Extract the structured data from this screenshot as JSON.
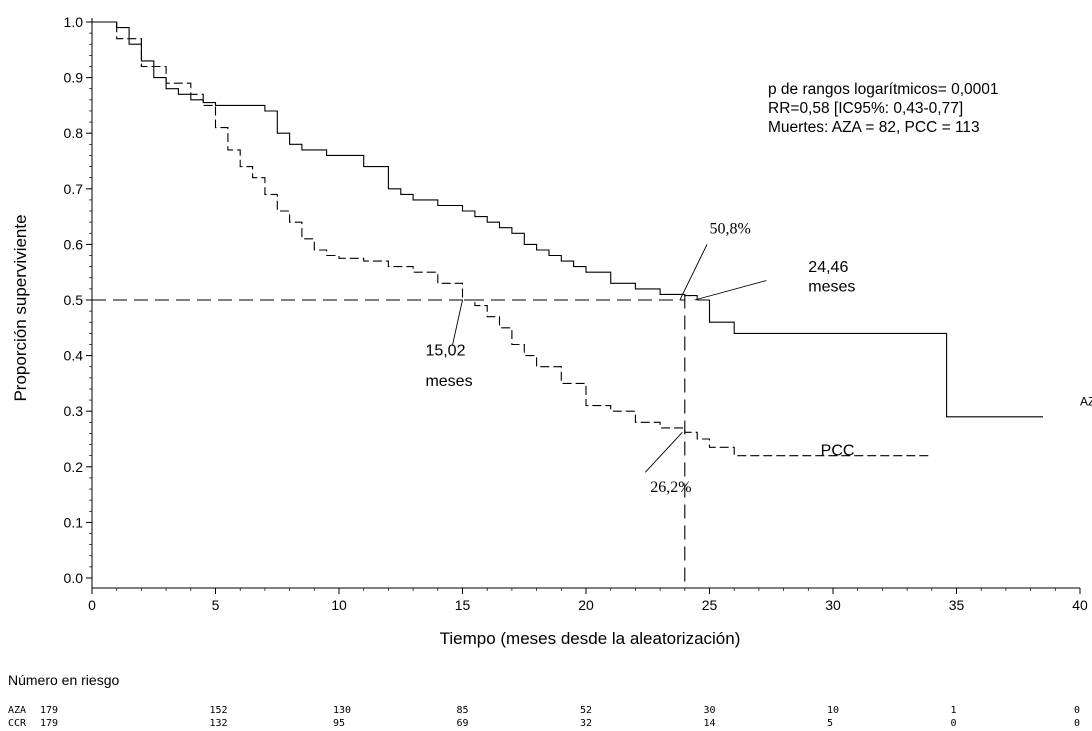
{
  "chart_data": {
    "type": "line",
    "xlabel": "Tiempo (meses desde la aleatorización)",
    "ylabel": "Proporción superviviente",
    "xlim": [
      0,
      40
    ],
    "ylim": [
      0,
      1
    ],
    "xticks": [
      0,
      5,
      10,
      15,
      20,
      25,
      30,
      35,
      40
    ],
    "yticks": [
      0.0,
      0.1,
      0.2,
      0.3,
      0.4,
      0.5,
      0.6,
      0.7,
      0.8,
      0.9,
      1.0
    ],
    "ytick_labels": [
      "0.0",
      "0.1",
      "0.2",
      "0.3",
      "0.4",
      "0.5",
      "0.6",
      "0.7",
      "0.8",
      "0.9",
      "1.0"
    ],
    "series": [
      {
        "name": "AZA",
        "style": "solid",
        "color": "#000000",
        "x": [
          0,
          1,
          1.5,
          2,
          2.5,
          3,
          3.5,
          4,
          4.5,
          5,
          6,
          7,
          7.5,
          8,
          8.5,
          9,
          9.5,
          10,
          11,
          12,
          12.5,
          13,
          14,
          15,
          15.5,
          16,
          16.5,
          17,
          17.5,
          18,
          18.5,
          19,
          19.5,
          20,
          21,
          22,
          23,
          24,
          24.5,
          25,
          26,
          27,
          28,
          29,
          30,
          31,
          32,
          33,
          34,
          34.6,
          35,
          36,
          37,
          38.5
        ],
        "y": [
          1.0,
          0.99,
          0.96,
          0.93,
          0.9,
          0.88,
          0.87,
          0.86,
          0.855,
          0.85,
          0.85,
          0.84,
          0.8,
          0.78,
          0.77,
          0.77,
          0.76,
          0.76,
          0.74,
          0.7,
          0.69,
          0.68,
          0.67,
          0.66,
          0.65,
          0.64,
          0.63,
          0.62,
          0.6,
          0.59,
          0.58,
          0.57,
          0.56,
          0.55,
          0.53,
          0.52,
          0.51,
          0.508,
          0.5,
          0.46,
          0.44,
          0.44,
          0.44,
          0.44,
          0.44,
          0.44,
          0.44,
          0.44,
          0.44,
          0.29,
          0.29,
          0.29,
          0.29,
          0.29
        ]
      },
      {
        "name": "PCC",
        "style": "dashed",
        "color": "#000000",
        "x": [
          0,
          1,
          2,
          3,
          4,
          4.5,
          5,
          5.5,
          6,
          6.5,
          7,
          7.5,
          8,
          8.5,
          9,
          9.5,
          10,
          11,
          12,
          13,
          14,
          15,
          15.5,
          16,
          16.5,
          17,
          17.5,
          18,
          19,
          20,
          21,
          22,
          23,
          24,
          24.5,
          25,
          26,
          28,
          30,
          32,
          34
        ],
        "y": [
          1.0,
          0.97,
          0.92,
          0.89,
          0.87,
          0.85,
          0.81,
          0.77,
          0.74,
          0.72,
          0.69,
          0.66,
          0.64,
          0.61,
          0.59,
          0.58,
          0.575,
          0.57,
          0.56,
          0.55,
          0.53,
          0.5,
          0.49,
          0.47,
          0.45,
          0.42,
          0.4,
          0.38,
          0.35,
          0.31,
          0.3,
          0.28,
          0.27,
          0.262,
          0.25,
          0.235,
          0.22,
          0.22,
          0.22,
          0.22,
          0.22
        ]
      }
    ],
    "reference_lines": {
      "median_y": 0.5,
      "time_x": 24
    },
    "series_labels": [
      {
        "text": "AZA",
        "x": 40.0,
        "y": 0.31
      },
      {
        "text": "PCC",
        "x": 29.5,
        "y": 0.22
      }
    ],
    "annotations": [
      {
        "text": "15,02",
        "x": 13.5,
        "y": 0.4,
        "font": "sans"
      },
      {
        "text": "meses",
        "x": 13.5,
        "y": 0.345,
        "font": "sans"
      },
      {
        "text": "50,8%",
        "x": 25.0,
        "y": 0.62,
        "font": "serif"
      },
      {
        "text": "24,46",
        "x": 29.0,
        "y": 0.55,
        "font": "sans"
      },
      {
        "text": "meses",
        "x": 29.0,
        "y": 0.515,
        "font": "sans"
      },
      {
        "text": "26,2%",
        "x": 22.6,
        "y": 0.155,
        "font": "serif"
      }
    ],
    "stats_box": [
      "p de rangos logarítmicos= 0,0001",
      "RR=0,58 [IC95%: 0,43-0,77]",
      "Muertes: AZA = 82, PCC = 113"
    ],
    "risk_table": {
      "title": "Número en riesgo",
      "times": [
        0,
        5,
        10,
        15,
        20,
        25,
        30,
        35,
        40
      ],
      "rows": [
        {
          "label": "AZA",
          "values": [
            "179",
            "152",
            "130",
            "85",
            "52",
            "30",
            "10",
            "1",
            "0"
          ]
        },
        {
          "label": "CCR",
          "values": [
            "179",
            "132",
            "95",
            "69",
            "32",
            "14",
            "5",
            "0",
            "0"
          ]
        }
      ]
    }
  }
}
